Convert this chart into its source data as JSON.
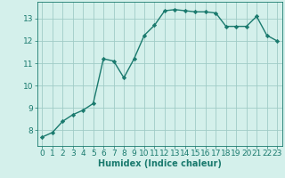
{
  "x": [
    0,
    1,
    2,
    3,
    4,
    5,
    6,
    7,
    8,
    9,
    10,
    11,
    12,
    13,
    14,
    15,
    16,
    17,
    18,
    19,
    20,
    21,
    22,
    23
  ],
  "y": [
    7.7,
    7.9,
    8.4,
    8.7,
    8.9,
    9.2,
    11.2,
    11.1,
    10.35,
    11.2,
    12.25,
    12.7,
    13.35,
    13.4,
    13.35,
    13.3,
    13.3,
    13.25,
    12.65,
    12.65,
    12.65,
    13.1,
    12.25,
    12.0
  ],
  "line_color": "#1a7a6e",
  "marker": "D",
  "marker_size": 2.2,
  "bg_color": "#d4f0eb",
  "grid_color": "#a0ccc6",
  "xlabel": "Humidex (Indice chaleur)",
  "xlim": [
    -0.5,
    23.5
  ],
  "ylim": [
    7.3,
    13.75
  ],
  "yticks": [
    8,
    9,
    10,
    11,
    12,
    13
  ],
  "xticks": [
    0,
    1,
    2,
    3,
    4,
    5,
    6,
    7,
    8,
    9,
    10,
    11,
    12,
    13,
    14,
    15,
    16,
    17,
    18,
    19,
    20,
    21,
    22,
    23
  ],
  "xlabel_fontsize": 7,
  "tick_fontsize": 6.5,
  "line_width": 1.0
}
